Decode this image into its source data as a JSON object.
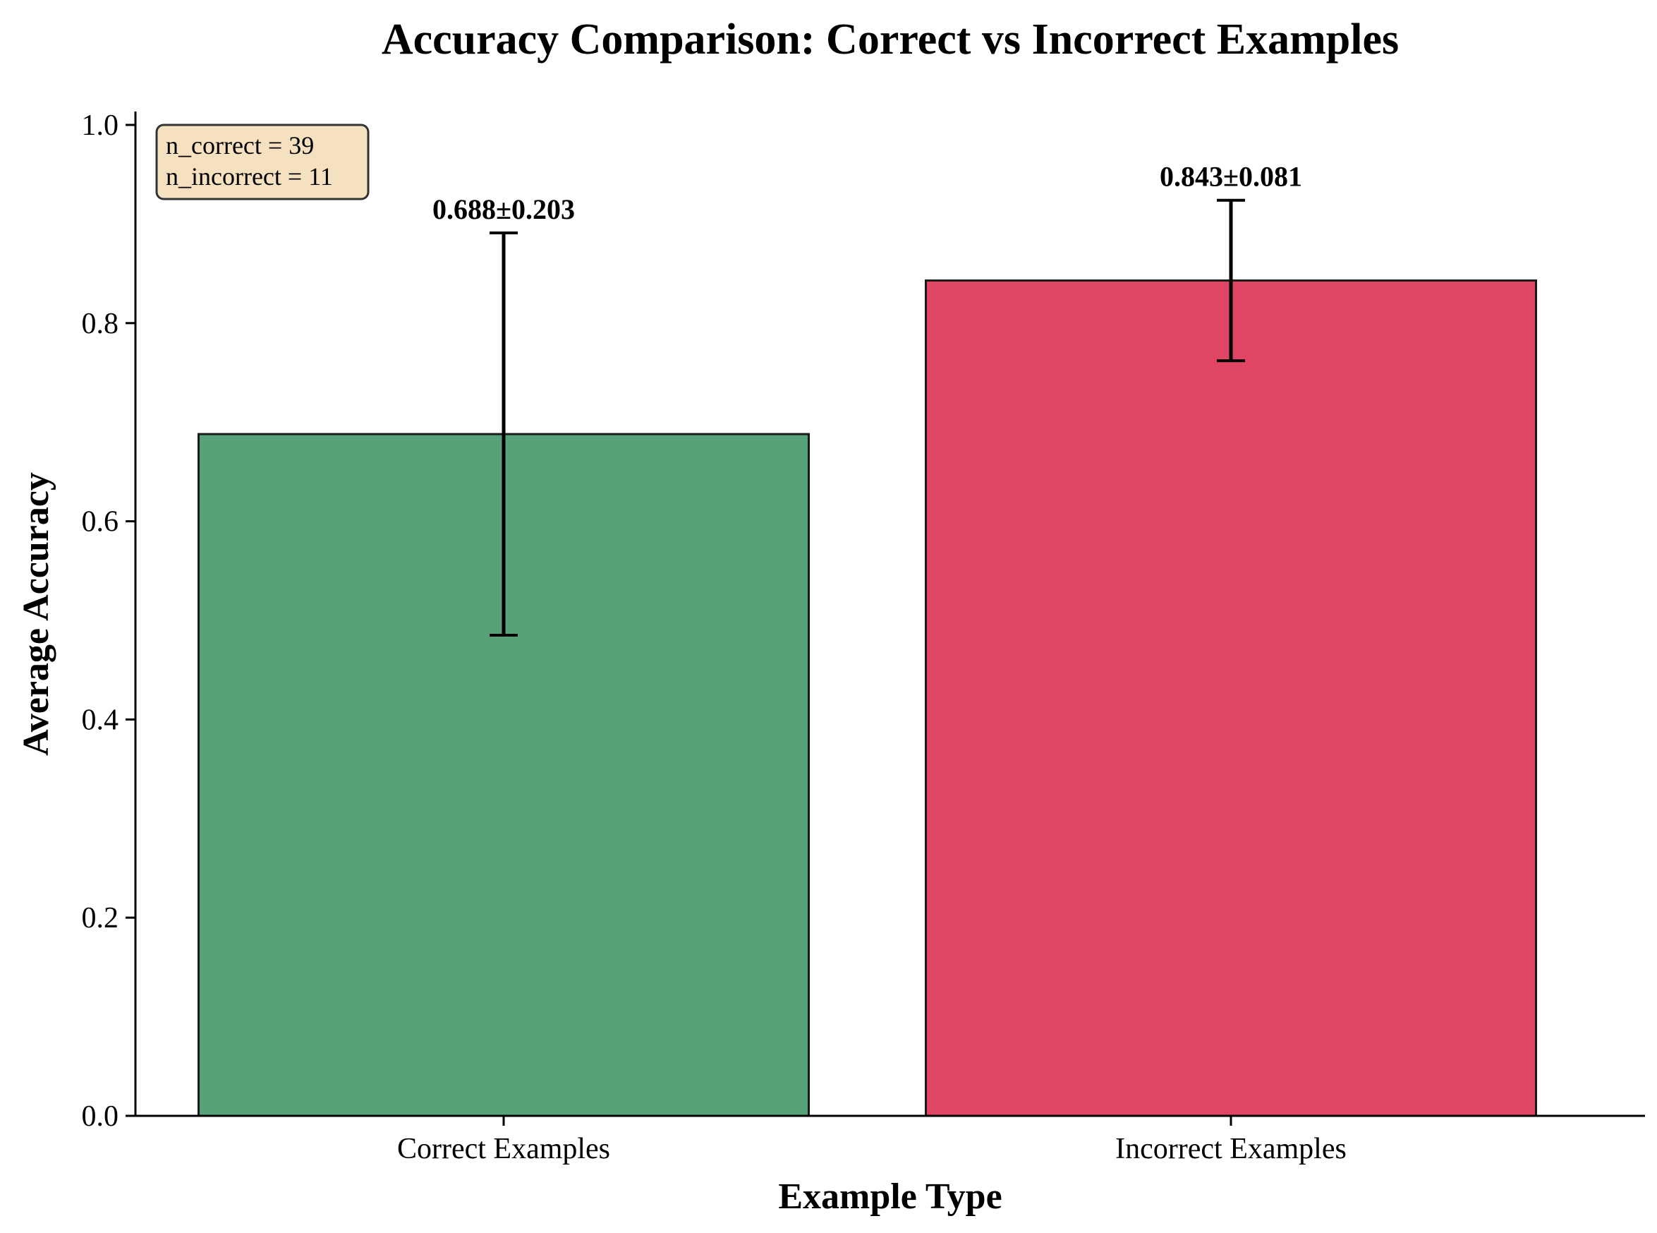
{
  "chart_data": {
    "type": "bar",
    "title": "Accuracy Comparison: Correct vs Incorrect Examples",
    "xlabel": "Example Type",
    "ylabel": "Average Accuracy",
    "categories": [
      "Correct Examples",
      "Incorrect Examples"
    ],
    "values": [
      0.688,
      0.843
    ],
    "errors": [
      0.203,
      0.081
    ],
    "data_labels": [
      "0.688±0.203",
      "0.843±0.081"
    ],
    "colors": [
      "#58a27a",
      "#e04664"
    ],
    "ylim": [
      0,
      1.0
    ],
    "yticks": [
      "0.0",
      "0.2",
      "0.4",
      "0.6",
      "0.8",
      "1.0"
    ],
    "grid": false,
    "annotation": {
      "lines": [
        "n_correct = 39",
        "n_incorrect = 11"
      ],
      "placement": "top-left",
      "background": "#f5e1c0"
    }
  }
}
